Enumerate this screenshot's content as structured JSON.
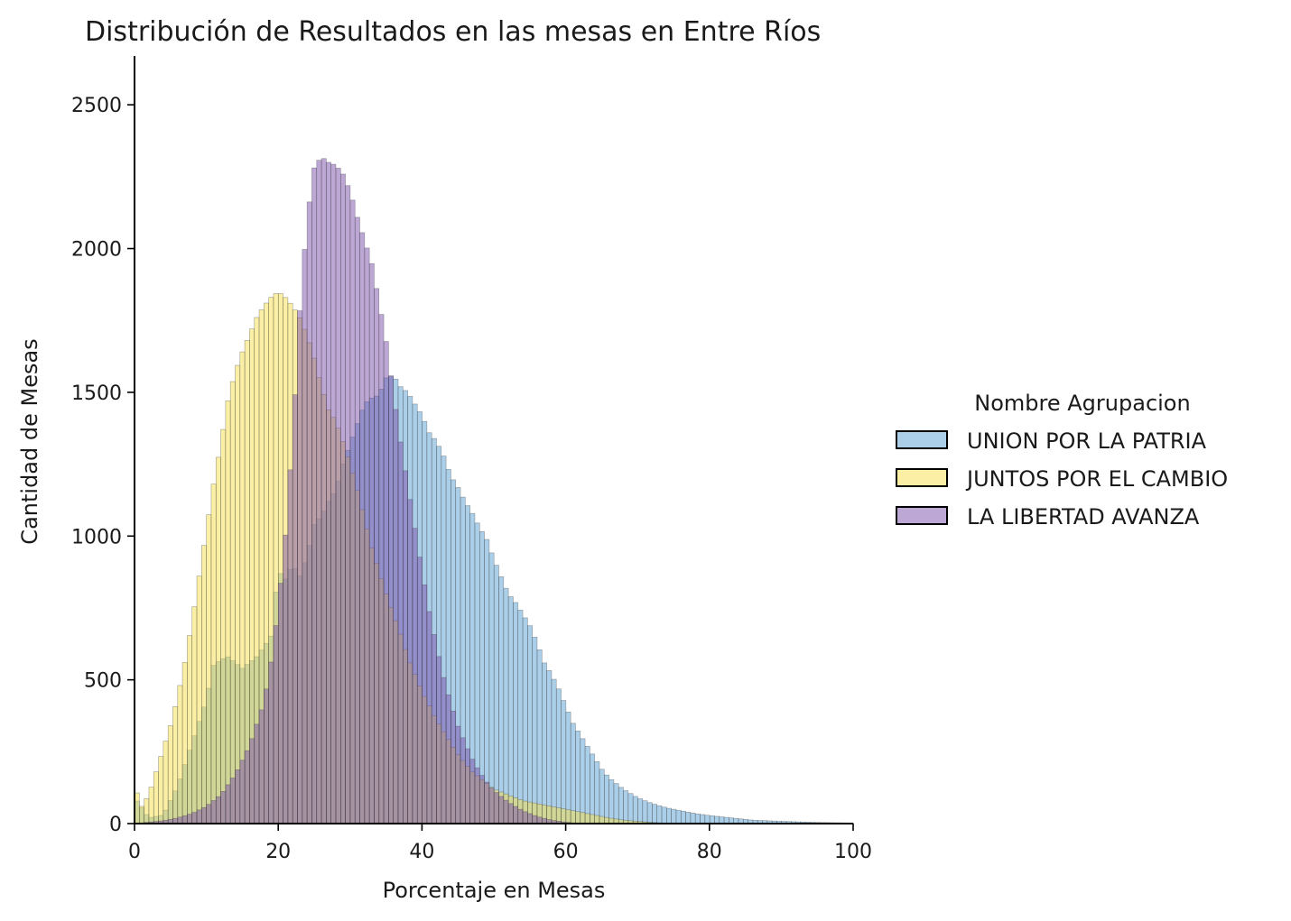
{
  "chart_data": {
    "type": "histogram",
    "title": "Distribución de Resultados en las mesas en Entre Ríos",
    "xlabel": "Porcentaje en Mesas",
    "ylabel": "Cantidad de Mesas",
    "xlim": [
      0,
      100
    ],
    "ylim": [
      0,
      2670
    ],
    "xticks": [
      0,
      20,
      40,
      60,
      80,
      100
    ],
    "yticks": [
      0,
      500,
      1000,
      1500,
      2000,
      2500
    ],
    "grid": false,
    "legend": {
      "title": "Nombre Agrupacion",
      "placement": "right",
      "entries": [
        "UNION POR LA PATRIA",
        "JUNTOS POR EL CAMBIO",
        "LA LIBERTAD AVANZA"
      ]
    },
    "bin_width": 0.667,
    "series": [
      {
        "name": "UNION POR LA PATRIA",
        "color": "#5a9fd4",
        "fill_opacity": 0.5,
        "points": [
          [
            0,
            90
          ],
          [
            2,
            20
          ],
          [
            4,
            30
          ],
          [
            6,
            130
          ],
          [
            8,
            280
          ],
          [
            10,
            430
          ],
          [
            11,
            550
          ],
          [
            12,
            570
          ],
          [
            13,
            580
          ],
          [
            15,
            540
          ],
          [
            17,
            580
          ],
          [
            19,
            650
          ],
          [
            20,
            880
          ],
          [
            21,
            850
          ],
          [
            22,
            900
          ],
          [
            23,
            860
          ],
          [
            24,
            930
          ],
          [
            25,
            1040
          ],
          [
            26,
            1070
          ],
          [
            27,
            1120
          ],
          [
            28,
            1160
          ],
          [
            29,
            1250
          ],
          [
            30,
            1320
          ],
          [
            31,
            1390
          ],
          [
            32,
            1460
          ],
          [
            33,
            1480
          ],
          [
            34,
            1490
          ],
          [
            35,
            1550
          ],
          [
            36,
            1560
          ],
          [
            37,
            1520
          ],
          [
            38,
            1500
          ],
          [
            39,
            1460
          ],
          [
            40,
            1420
          ],
          [
            41,
            1360
          ],
          [
            42,
            1330
          ],
          [
            43,
            1280
          ],
          [
            44,
            1210
          ],
          [
            45,
            1170
          ],
          [
            46,
            1120
          ],
          [
            47,
            1080
          ],
          [
            48,
            1030
          ],
          [
            49,
            990
          ],
          [
            50,
            920
          ],
          [
            51,
            860
          ],
          [
            52,
            800
          ],
          [
            53,
            770
          ],
          [
            54,
            730
          ],
          [
            55,
            690
          ],
          [
            56,
            630
          ],
          [
            57,
            560
          ],
          [
            58,
            520
          ],
          [
            59,
            470
          ],
          [
            60,
            410
          ],
          [
            61,
            350
          ],
          [
            62,
            310
          ],
          [
            63,
            270
          ],
          [
            64,
            230
          ],
          [
            65,
            190
          ],
          [
            66,
            160
          ],
          [
            67,
            140
          ],
          [
            68,
            120
          ],
          [
            70,
            90
          ],
          [
            72,
            70
          ],
          [
            74,
            55
          ],
          [
            76,
            45
          ],
          [
            78,
            35
          ],
          [
            80,
            28
          ],
          [
            83,
            20
          ],
          [
            86,
            12
          ],
          [
            90,
            8
          ],
          [
            95,
            4
          ],
          [
            100,
            2
          ]
        ]
      },
      {
        "name": "JUNTOS POR EL CAMBIO",
        "color": "#f5e04a",
        "fill_opacity": 0.5,
        "points": [
          [
            0,
            130
          ],
          [
            1,
            60
          ],
          [
            2,
            100
          ],
          [
            3,
            180
          ],
          [
            4,
            260
          ],
          [
            5,
            340
          ],
          [
            6,
            440
          ],
          [
            7,
            560
          ],
          [
            8,
            700
          ],
          [
            9,
            860
          ],
          [
            10,
            1020
          ],
          [
            11,
            1180
          ],
          [
            12,
            1320
          ],
          [
            13,
            1470
          ],
          [
            14,
            1570
          ],
          [
            15,
            1640
          ],
          [
            16,
            1700
          ],
          [
            17,
            1760
          ],
          [
            18,
            1800
          ],
          [
            19,
            1830
          ],
          [
            20,
            1850
          ],
          [
            21,
            1830
          ],
          [
            22,
            1800
          ],
          [
            23,
            1760
          ],
          [
            24,
            1700
          ],
          [
            25,
            1620
          ],
          [
            26,
            1520
          ],
          [
            27,
            1440
          ],
          [
            28,
            1400
          ],
          [
            29,
            1330
          ],
          [
            30,
            1250
          ],
          [
            31,
            1160
          ],
          [
            32,
            1060
          ],
          [
            33,
            960
          ],
          [
            34,
            880
          ],
          [
            35,
            800
          ],
          [
            36,
            730
          ],
          [
            37,
            660
          ],
          [
            38,
            580
          ],
          [
            39,
            520
          ],
          [
            40,
            460
          ],
          [
            41,
            410
          ],
          [
            42,
            360
          ],
          [
            43,
            320
          ],
          [
            44,
            280
          ],
          [
            45,
            240
          ],
          [
            46,
            210
          ],
          [
            47,
            180
          ],
          [
            48,
            160
          ],
          [
            49,
            140
          ],
          [
            50,
            120
          ],
          [
            52,
            100
          ],
          [
            54,
            80
          ],
          [
            56,
            70
          ],
          [
            58,
            60
          ],
          [
            60,
            50
          ],
          [
            62,
            40
          ],
          [
            64,
            30
          ],
          [
            66,
            20
          ],
          [
            68,
            12
          ],
          [
            70,
            8
          ],
          [
            72,
            4
          ],
          [
            75,
            0
          ]
        ]
      },
      {
        "name": "LA LIBERTAD AVANZA",
        "color": "#7a4fab",
        "fill_opacity": 0.5,
        "points": [
          [
            0,
            0
          ],
          [
            2,
            5
          ],
          [
            4,
            10
          ],
          [
            6,
            20
          ],
          [
            8,
            35
          ],
          [
            10,
            60
          ],
          [
            12,
            100
          ],
          [
            14,
            170
          ],
          [
            16,
            270
          ],
          [
            18,
            420
          ],
          [
            19,
            560
          ],
          [
            20,
            750
          ],
          [
            21,
            1000
          ],
          [
            22,
            1340
          ],
          [
            23,
            1780
          ],
          [
            24,
            2100
          ],
          [
            25,
            2280
          ],
          [
            26,
            2320
          ],
          [
            27,
            2300
          ],
          [
            28,
            2290
          ],
          [
            29,
            2260
          ],
          [
            30,
            2200
          ],
          [
            31,
            2110
          ],
          [
            32,
            2030
          ],
          [
            33,
            1950
          ],
          [
            34,
            1820
          ],
          [
            35,
            1680
          ],
          [
            36,
            1500
          ],
          [
            37,
            1330
          ],
          [
            38,
            1180
          ],
          [
            39,
            1030
          ],
          [
            40,
            880
          ],
          [
            41,
            740
          ],
          [
            42,
            620
          ],
          [
            43,
            510
          ],
          [
            44,
            420
          ],
          [
            45,
            340
          ],
          [
            46,
            280
          ],
          [
            47,
            225
          ],
          [
            48,
            180
          ],
          [
            49,
            145
          ],
          [
            50,
            115
          ],
          [
            52,
            75
          ],
          [
            54,
            45
          ],
          [
            56,
            25
          ],
          [
            58,
            12
          ],
          [
            60,
            5
          ],
          [
            62,
            0
          ]
        ]
      }
    ]
  }
}
